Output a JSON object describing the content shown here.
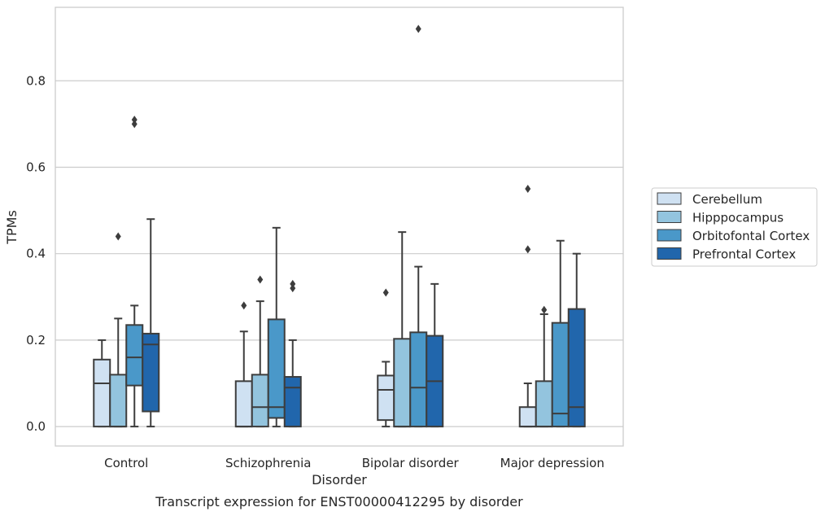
{
  "chart_data": {
    "type": "box",
    "xlabel": "Disorder",
    "ylabel": "TPMs",
    "caption": "Transcript expression for ENST00000412295 by disorder",
    "ylim": [
      -0.045,
      0.97
    ],
    "yticks": [
      "0.0",
      "0.2",
      "0.4",
      "0.6",
      "0.8"
    ],
    "ytick_values": [
      0.0,
      0.2,
      0.4,
      0.6,
      0.8
    ],
    "categories": [
      "Control",
      "Schizophrenia",
      "Bipolar disorder",
      "Major depression"
    ],
    "grid": "horizontal",
    "legend_position": "right",
    "series": [
      {
        "name": "Cerebellum",
        "color": "#cfe1f2",
        "boxes": [
          {
            "whislo": 0.0,
            "q1": 0.0,
            "med": 0.1,
            "q3": 0.155,
            "whishi": 0.2,
            "fliers": []
          },
          {
            "whislo": 0.0,
            "q1": 0.0,
            "med": 0.0,
            "q3": 0.105,
            "whishi": 0.22,
            "fliers": [
              0.28
            ]
          },
          {
            "whislo": 0.0,
            "q1": 0.015,
            "med": 0.085,
            "q3": 0.118,
            "whishi": 0.15,
            "fliers": [
              0.31
            ]
          },
          {
            "whislo": 0.0,
            "q1": 0.0,
            "med": 0.0,
            "q3": 0.045,
            "whishi": 0.1,
            "fliers": [
              0.41,
              0.55
            ]
          }
        ]
      },
      {
        "name": "Hipppocampus",
        "color": "#93c4de",
        "boxes": [
          {
            "whislo": 0.0,
            "q1": 0.0,
            "med": 0.0,
            "q3": 0.12,
            "whishi": 0.25,
            "fliers": [
              0.44
            ]
          },
          {
            "whislo": 0.0,
            "q1": 0.0,
            "med": 0.045,
            "q3": 0.12,
            "whishi": 0.29,
            "fliers": [
              0.34
            ]
          },
          {
            "whislo": 0.0,
            "q1": 0.0,
            "med": 0.0,
            "q3": 0.203,
            "whishi": 0.45,
            "fliers": []
          },
          {
            "whislo": 0.0,
            "q1": 0.0,
            "med": 0.0,
            "q3": 0.105,
            "whishi": 0.26,
            "fliers": [
              0.27
            ]
          }
        ]
      },
      {
        "name": "Orbitofontal Cortex",
        "color": "#4a98c9",
        "boxes": [
          {
            "whislo": 0.0,
            "q1": 0.095,
            "med": 0.16,
            "q3": 0.235,
            "whishi": 0.28,
            "fliers": [
              0.7,
              0.71
            ]
          },
          {
            "whislo": 0.0,
            "q1": 0.02,
            "med": 0.045,
            "q3": 0.248,
            "whishi": 0.46,
            "fliers": []
          },
          {
            "whislo": 0.0,
            "q1": 0.0,
            "med": 0.09,
            "q3": 0.218,
            "whishi": 0.37,
            "fliers": [
              0.92
            ]
          },
          {
            "whislo": 0.0,
            "q1": 0.0,
            "med": 0.03,
            "q3": 0.24,
            "whishi": 0.43,
            "fliers": []
          }
        ]
      },
      {
        "name": "Prefrontal Cortex",
        "color": "#2166ac",
        "boxes": [
          {
            "whislo": 0.0,
            "q1": 0.035,
            "med": 0.19,
            "q3": 0.215,
            "whishi": 0.48,
            "fliers": []
          },
          {
            "whislo": 0.0,
            "q1": 0.0,
            "med": 0.09,
            "q3": 0.115,
            "whishi": 0.2,
            "fliers": [
              0.32,
              0.33
            ]
          },
          {
            "whislo": 0.0,
            "q1": 0.0,
            "med": 0.105,
            "q3": 0.21,
            "whishi": 0.33,
            "fliers": []
          },
          {
            "whislo": 0.0,
            "q1": 0.0,
            "med": 0.045,
            "q3": 0.272,
            "whishi": 0.4,
            "fliers": []
          }
        ]
      }
    ]
  }
}
